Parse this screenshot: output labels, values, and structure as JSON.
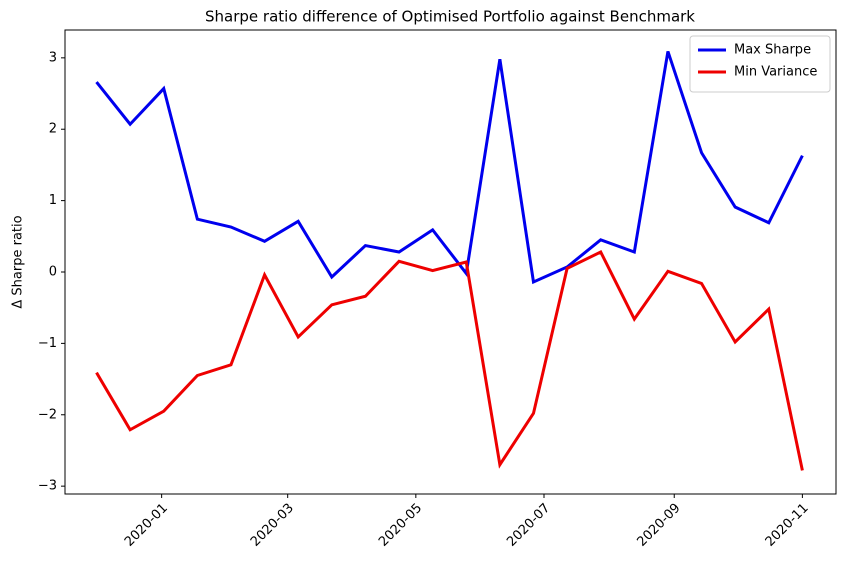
{
  "chart_data": {
    "type": "line",
    "title": "Sharpe ratio difference of Optimised Portfolio against Benchmark",
    "ylabel": "Δ Sharpe ratio",
    "x": [
      "2019-12-01",
      "2019-12-17",
      "2020-01-02",
      "2020-01-18",
      "2020-02-03",
      "2020-02-19",
      "2020-03-06",
      "2020-03-22",
      "2020-04-07",
      "2020-04-23",
      "2020-05-09",
      "2020-05-25",
      "2020-06-10",
      "2020-06-26",
      "2020-07-12",
      "2020-07-28",
      "2020-08-13",
      "2020-08-29",
      "2020-09-14",
      "2020-09-30",
      "2020-10-16",
      "2020-11-01"
    ],
    "series": [
      {
        "name": "Max Sharpe",
        "color": "#0000ee",
        "values": [
          2.66,
          2.07,
          2.57,
          0.74,
          0.63,
          0.43,
          0.71,
          -0.07,
          0.37,
          0.28,
          0.59,
          -0.02,
          2.98,
          -0.14,
          0.07,
          0.45,
          0.28,
          3.09,
          1.67,
          0.91,
          0.69,
          1.63
        ]
      },
      {
        "name": "Min Variance",
        "color": "#ee0000",
        "values": [
          -1.41,
          -2.21,
          -1.95,
          -1.45,
          -1.3,
          -0.04,
          -0.91,
          -0.46,
          -0.34,
          0.15,
          0.02,
          0.14,
          -2.7,
          -1.98,
          0.05,
          0.28,
          -0.66,
          0.01,
          -0.16,
          -0.98,
          -0.52,
          -2.78
        ]
      }
    ],
    "xlim": [
      "2019-11-16",
      "2020-11-17"
    ],
    "xticks": [
      {
        "value": "2020-01-01",
        "label": "2020-01"
      },
      {
        "value": "2020-03-01",
        "label": "2020-03"
      },
      {
        "value": "2020-05-01",
        "label": "2020-05"
      },
      {
        "value": "2020-07-01",
        "label": "2020-07"
      },
      {
        "value": "2020-09-01",
        "label": "2020-09"
      },
      {
        "value": "2020-11-01",
        "label": "2020-11"
      }
    ],
    "ylim": [
      -3.11,
      3.39
    ],
    "yticks": [
      {
        "value": -3,
        "label": "−3"
      },
      {
        "value": -2,
        "label": "−2"
      },
      {
        "value": -1,
        "label": "−1"
      },
      0,
      1,
      2,
      3
    ],
    "legend": "upper right",
    "grid": false
  }
}
